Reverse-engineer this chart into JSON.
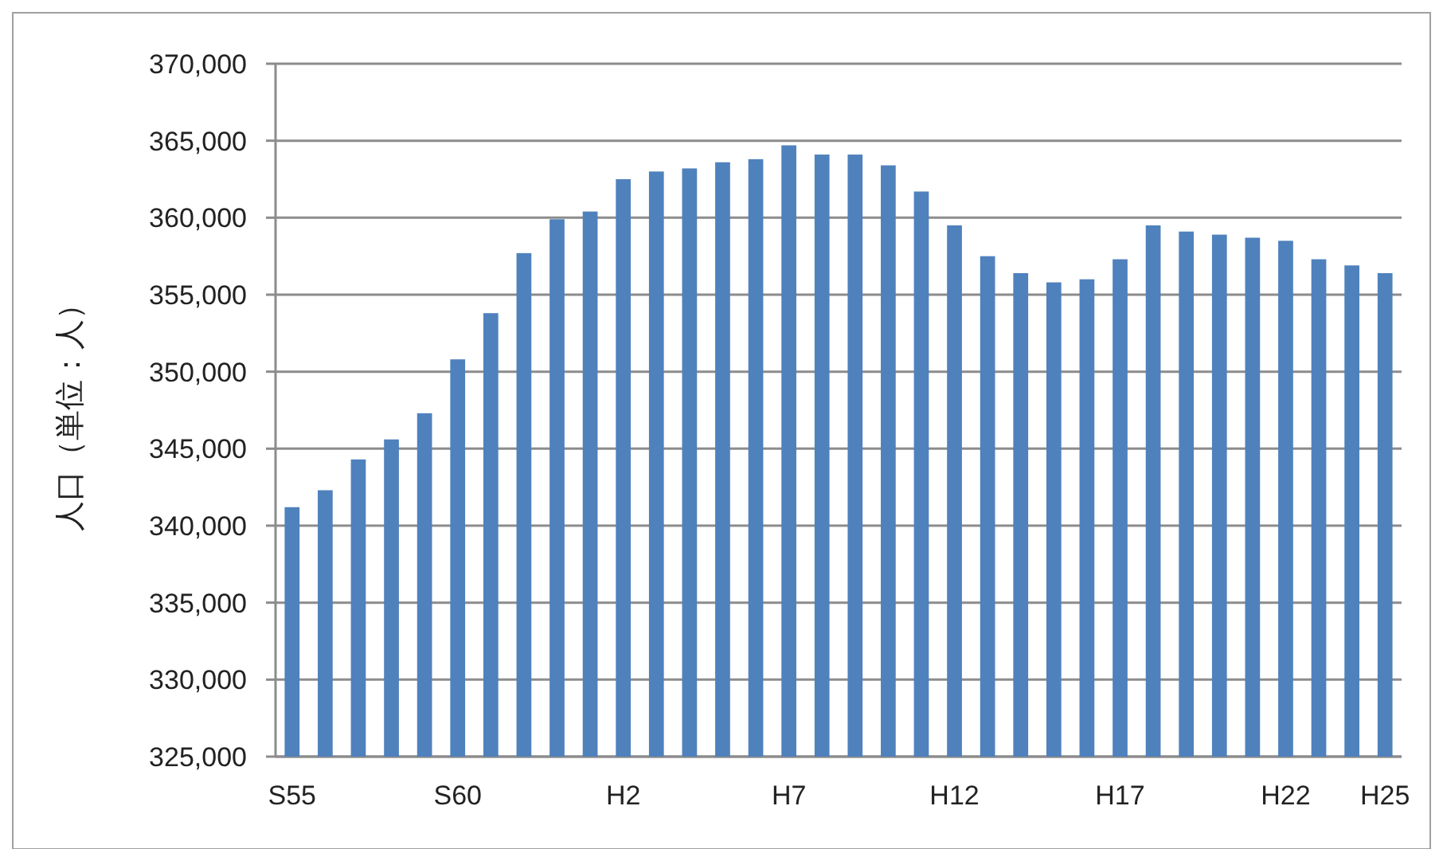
{
  "chart_data": {
    "type": "bar",
    "ylabel": "人口（単位：人）",
    "categories": [
      "S55",
      null,
      null,
      null,
      null,
      "S60",
      null,
      null,
      null,
      null,
      "H2",
      null,
      null,
      null,
      null,
      "H7",
      null,
      null,
      null,
      null,
      "H12",
      null,
      null,
      null,
      null,
      "H17",
      null,
      null,
      null,
      null,
      "H22",
      null,
      null,
      "H25"
    ],
    "values": [
      341200,
      342300,
      344300,
      345600,
      347300,
      350800,
      353800,
      357700,
      359900,
      360400,
      362500,
      363000,
      363200,
      363600,
      363800,
      364700,
      364100,
      364100,
      363400,
      361700,
      359500,
      357500,
      356400,
      355800,
      356000,
      357300,
      359500,
      359100,
      358900,
      358700,
      358500,
      357300,
      356900,
      356400
    ],
    "color": "#4f81bd",
    "ylim": [
      325000,
      370000
    ],
    "yticks": [
      {
        "value": 325000,
        "label": "325,000"
      },
      {
        "value": 330000,
        "label": "330,000"
      },
      {
        "value": 335000,
        "label": "335,000"
      },
      {
        "value": 340000,
        "label": "340,000"
      },
      {
        "value": 345000,
        "label": "345,000"
      },
      {
        "value": 350000,
        "label": "350,000"
      },
      {
        "value": 355000,
        "label": "355,000"
      },
      {
        "value": 360000,
        "label": "360,000"
      },
      {
        "value": 365000,
        "label": "365,000"
      },
      {
        "value": 370000,
        "label": "370,000"
      }
    ],
    "grid": "y"
  }
}
